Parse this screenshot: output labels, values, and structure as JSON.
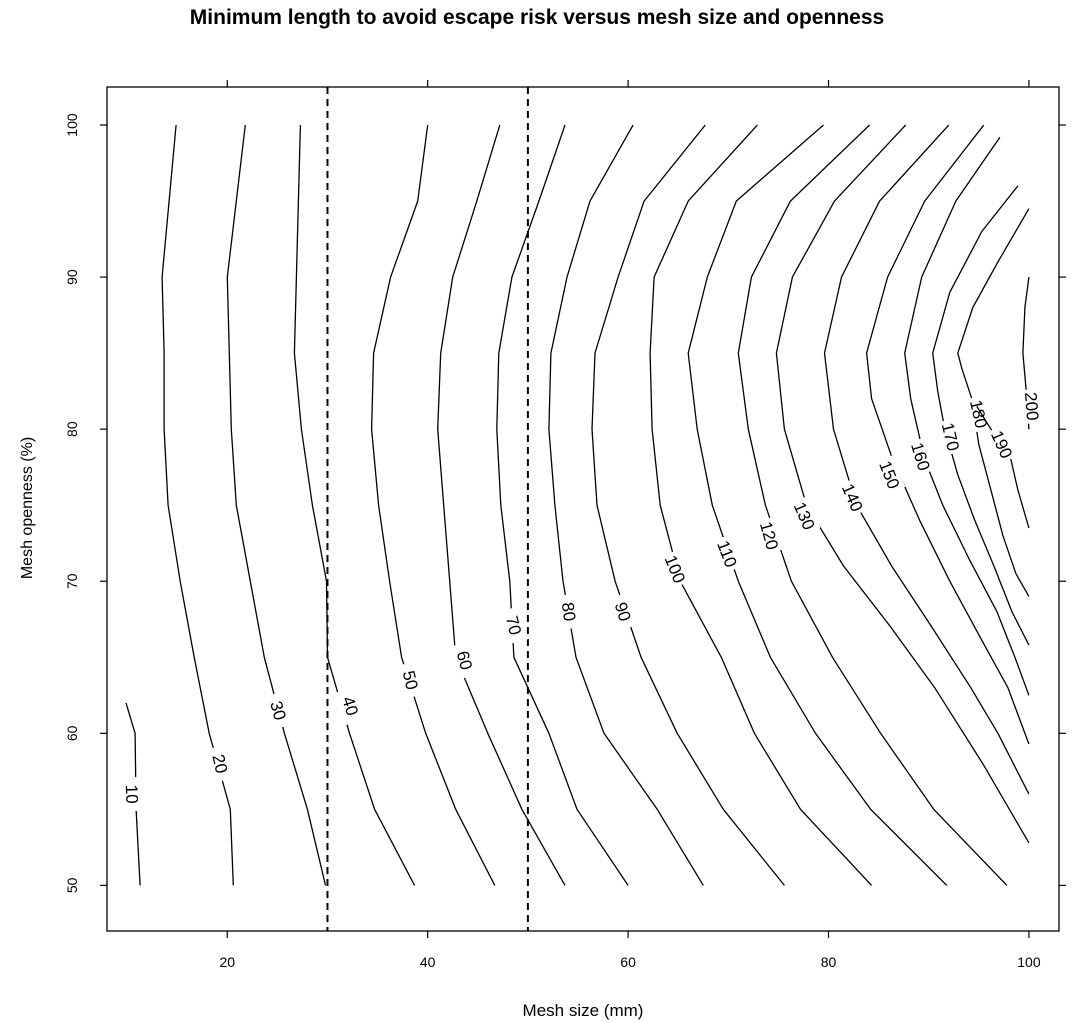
{
  "chart_data": {
    "type": "contour",
    "title": "Minimum length to avoid escape risk versus mesh size and openness",
    "xlabel": "Mesh size (mm)",
    "ylabel": "Mesh openness (%)",
    "xlim": [
      8,
      103
    ],
    "ylim": [
      47,
      102.5
    ],
    "xticks": [
      20,
      40,
      60,
      80,
      100
    ],
    "yticks": [
      50,
      60,
      70,
      80,
      90,
      100
    ],
    "tick_labels_x": [
      "20",
      "40",
      "60",
      "80",
      "100"
    ],
    "tick_labels_y": [
      "50",
      "60",
      "70",
      "80",
      "90",
      "100"
    ],
    "reference_lines": [
      {
        "orientation": "vertical",
        "x": 30,
        "style": "dashed"
      },
      {
        "orientation": "vertical",
        "x": 50,
        "style": "dashed"
      }
    ],
    "contours": [
      {
        "level": 10,
        "label": "10",
        "label_at": [
          10.5,
          56
        ],
        "points": [
          [
            11.3,
            50
          ],
          [
            10.9,
            55
          ],
          [
            10.8,
            60
          ],
          [
            9.9,
            62
          ]
        ]
      },
      {
        "level": 20,
        "label": "20",
        "label_at": [
          19.3,
          58
        ],
        "points": [
          [
            20.6,
            50
          ],
          [
            20.3,
            55
          ],
          [
            18.2,
            60
          ],
          [
            16.7,
            65
          ],
          [
            15.3,
            70
          ],
          [
            14.1,
            75
          ],
          [
            13.7,
            80
          ],
          [
            13.7,
            85
          ],
          [
            13.5,
            90
          ],
          [
            14.9,
            100
          ]
        ]
      },
      {
        "level": 30,
        "label": "30",
        "label_at": [
          25.1,
          61.5
        ],
        "points": [
          [
            29.8,
            50
          ],
          [
            28.0,
            55
          ],
          [
            25.7,
            60
          ],
          [
            23.7,
            65
          ],
          [
            22.3,
            70
          ],
          [
            20.9,
            75
          ],
          [
            20.4,
            80
          ],
          [
            20.2,
            85
          ],
          [
            20.0,
            90
          ],
          [
            21.8,
            100
          ]
        ]
      },
      {
        "level": 40,
        "label": "40",
        "label_at": [
          32.3,
          61.8
        ],
        "points": [
          [
            38.7,
            50
          ],
          [
            34.7,
            55
          ],
          [
            32.2,
            60
          ],
          [
            30.0,
            65
          ],
          [
            29.9,
            70
          ],
          [
            28.5,
            75
          ],
          [
            27.4,
            80
          ],
          [
            26.7,
            85
          ],
          [
            26.9,
            90
          ],
          [
            27.3,
            100
          ]
        ]
      },
      {
        "level": 50,
        "label": "50",
        "label_at": [
          38.3,
          63.5
        ],
        "points": [
          [
            46.7,
            50
          ],
          [
            42.8,
            55
          ],
          [
            39.8,
            60
          ],
          [
            37.4,
            65
          ],
          [
            36.2,
            70
          ],
          [
            35.1,
            75
          ],
          [
            34.4,
            80
          ],
          [
            34.6,
            85
          ],
          [
            36.3,
            90
          ],
          [
            39.0,
            95
          ],
          [
            40.0,
            100
          ]
        ]
      },
      {
        "level": 60,
        "label": "60",
        "label_at": [
          43.7,
          64.8
        ],
        "points": [
          [
            53.7,
            50
          ],
          [
            49.4,
            55
          ],
          [
            46.0,
            60
          ],
          [
            42.8,
            65
          ],
          [
            42.2,
            70
          ],
          [
            41.6,
            75
          ],
          [
            41.0,
            80
          ],
          [
            41.3,
            85
          ],
          [
            42.5,
            90
          ],
          [
            44.9,
            95
          ],
          [
            47.2,
            100
          ]
        ]
      },
      {
        "level": 70,
        "label": "70",
        "label_at": [
          48.6,
          67.1
        ],
        "points": [
          [
            60.0,
            50
          ],
          [
            54.9,
            55
          ],
          [
            52.1,
            60
          ],
          [
            48.6,
            65
          ],
          [
            48.2,
            70
          ],
          [
            47.3,
            75
          ],
          [
            46.9,
            80
          ],
          [
            47.1,
            85
          ],
          [
            48.4,
            90
          ],
          [
            51.1,
            95
          ],
          [
            53.7,
            100
          ]
        ]
      },
      {
        "level": 80,
        "label": "80",
        "label_at": [
          54.1,
          68.0
        ],
        "points": [
          [
            67.5,
            50
          ],
          [
            62.9,
            55
          ],
          [
            57.6,
            60
          ],
          [
            54.8,
            65
          ],
          [
            53.5,
            70
          ],
          [
            52.7,
            75
          ],
          [
            52.1,
            80
          ],
          [
            52.3,
            85
          ],
          [
            53.9,
            90
          ],
          [
            56.2,
            95
          ],
          [
            60.5,
            100
          ]
        ]
      },
      {
        "level": 90,
        "label": "90",
        "label_at": [
          59.5,
          68.0
        ],
        "points": [
          [
            75.6,
            50
          ],
          [
            69.5,
            55
          ],
          [
            64.9,
            60
          ],
          [
            61.3,
            65
          ],
          [
            58.7,
            70
          ],
          [
            56.9,
            75
          ],
          [
            56.4,
            80
          ],
          [
            56.7,
            85
          ],
          [
            59.0,
            90
          ],
          [
            61.6,
            95
          ],
          [
            67.7,
            100
          ]
        ]
      },
      {
        "level": 100,
        "label": "100",
        "label_at": [
          64.7,
          70.8
        ],
        "points": [
          [
            84.3,
            50
          ],
          [
            77.2,
            55
          ],
          [
            72.6,
            60
          ],
          [
            69.3,
            65
          ],
          [
            65.2,
            70
          ],
          [
            63.2,
            75
          ],
          [
            62.4,
            80
          ],
          [
            62.2,
            85
          ],
          [
            62.6,
            90
          ],
          [
            66.0,
            95
          ],
          [
            72.9,
            100
          ]
        ]
      },
      {
        "level": 110,
        "label": "110",
        "label_at": [
          69.9,
          71.8
        ],
        "points": [
          [
            91.8,
            50
          ],
          [
            84.2,
            55
          ],
          [
            78.7,
            60
          ],
          [
            74.2,
            65
          ],
          [
            71.0,
            70
          ],
          [
            68.4,
            75
          ],
          [
            66.9,
            80
          ],
          [
            66.0,
            85
          ],
          [
            67.9,
            90
          ],
          [
            70.8,
            95
          ],
          [
            79.5,
            100
          ]
        ]
      },
      {
        "level": 120,
        "label": "120",
        "label_at": [
          74.1,
          73.0
        ],
        "points": [
          [
            97.8,
            50
          ],
          [
            90.5,
            55
          ],
          [
            85.2,
            60
          ],
          [
            80.4,
            65
          ],
          [
            76.3,
            70
          ],
          [
            73.7,
            75
          ],
          [
            72.0,
            80
          ],
          [
            71.0,
            85
          ],
          [
            72.3,
            90
          ],
          [
            76.2,
            95
          ],
          [
            84.1,
            100
          ]
        ]
      },
      {
        "level": 130,
        "label": "130",
        "label_at": [
          77.6,
          74.3
        ],
        "points": [
          [
            100,
            52.8
          ],
          [
            95.4,
            58
          ],
          [
            90.6,
            63
          ],
          [
            86.2,
            67
          ],
          [
            81.5,
            71
          ],
          [
            77.8,
            75
          ],
          [
            75.6,
            80
          ],
          [
            74.8,
            85
          ],
          [
            76.4,
            90
          ],
          [
            80.6,
            95
          ],
          [
            87.7,
            100
          ]
        ]
      },
      {
        "level": 140,
        "label": "140",
        "label_at": [
          82.4,
          75.5
        ],
        "points": [
          [
            100,
            56
          ],
          [
            96.9,
            60
          ],
          [
            94.2,
            63
          ],
          [
            90.3,
            67
          ],
          [
            86.3,
            71
          ],
          [
            82.8,
            75
          ],
          [
            80.5,
            80
          ],
          [
            79.6,
            85
          ],
          [
            81.3,
            90
          ],
          [
            85.1,
            95
          ],
          [
            92.0,
            100
          ]
        ]
      },
      {
        "level": 150,
        "label": "150",
        "label_at": [
          86.1,
          77.0
        ],
        "points": [
          [
            100,
            59.3
          ],
          [
            97.9,
            63
          ],
          [
            95.4,
            66
          ],
          [
            92.1,
            70
          ],
          [
            89.1,
            74
          ],
          [
            86.4,
            78
          ],
          [
            84.3,
            82
          ],
          [
            83.8,
            85
          ],
          [
            85.9,
            90
          ],
          [
            89.6,
            95
          ],
          [
            95.5,
            100
          ]
        ]
      },
      {
        "level": 160,
        "label": "160",
        "label_at": [
          89.2,
          78.2
        ],
        "points": [
          [
            100,
            62.5
          ],
          [
            98.6,
            65
          ],
          [
            96.8,
            68
          ],
          [
            94.0,
            71.5
          ],
          [
            91.4,
            75
          ],
          [
            89.6,
            78
          ],
          [
            88.2,
            82
          ],
          [
            87.6,
            85
          ],
          [
            89.3,
            90
          ],
          [
            92.7,
            95
          ],
          [
            97.1,
            99.2
          ]
        ]
      },
      {
        "level": 170,
        "label": "170",
        "label_at": [
          92.2,
          79.5
        ],
        "points": [
          [
            100,
            65.8
          ],
          [
            98.3,
            68
          ],
          [
            96.5,
            71
          ],
          [
            94.6,
            74
          ],
          [
            92.9,
            77
          ],
          [
            91.6,
            80
          ],
          [
            90.9,
            82.5
          ],
          [
            90.4,
            85
          ],
          [
            92.1,
            89
          ],
          [
            95.3,
            93
          ],
          [
            98.9,
            96
          ]
        ]
      },
      {
        "level": 180,
        "label": "180",
        "label_at": [
          95.0,
          81.0
        ],
        "points": [
          [
            100,
            69.0
          ],
          [
            98.7,
            70.5
          ],
          [
            97.4,
            73
          ],
          [
            96.2,
            76
          ],
          [
            95.0,
            79
          ],
          [
            94.3,
            82
          ],
          [
            93.3,
            84
          ],
          [
            92.9,
            85
          ],
          [
            94.4,
            88
          ],
          [
            96.9,
            91
          ],
          [
            100,
            94.5
          ]
        ]
      },
      {
        "level": 190,
        "label": "190",
        "label_at": [
          97.3,
          79.0
        ],
        "points": [
          [
            100,
            73.5
          ],
          [
            98.9,
            76
          ],
          [
            98.2,
            78
          ],
          [
            96.2,
            80
          ],
          [
            94.8,
            81.5
          ]
        ]
      },
      {
        "level": 200,
        "label": "200",
        "label_at": [
          100.3,
          81.5
        ],
        "points": [
          [
            100,
            80
          ],
          [
            99.8,
            82
          ],
          [
            99.4,
            85
          ],
          [
            99.6,
            88
          ],
          [
            100,
            90
          ]
        ]
      }
    ]
  }
}
